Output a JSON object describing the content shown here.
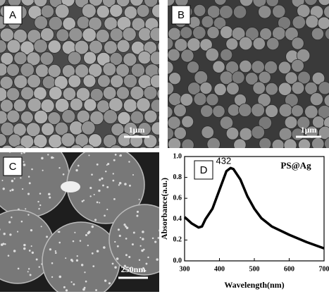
{
  "panels": {
    "A": {
      "label": "A",
      "scale_bar": "1μm"
    },
    "B": {
      "label": "B",
      "scale_bar": "1μm"
    },
    "C": {
      "label": "C",
      "scale_bar": "250nm"
    }
  },
  "chart_data": {
    "type": "line",
    "panel_label": "D",
    "sample_label": "PS@Ag",
    "peak_label": "432",
    "xlabel": "Wavelength(nm)",
    "ylabel": "Absorbance(a.u.)",
    "x": [
      300,
      320,
      340,
      350,
      360,
      380,
      400,
      420,
      432,
      440,
      460,
      480,
      500,
      520,
      550,
      600,
      650,
      700
    ],
    "values": [
      0.42,
      0.36,
      0.32,
      0.33,
      0.4,
      0.5,
      0.68,
      0.86,
      0.89,
      0.88,
      0.78,
      0.62,
      0.5,
      0.41,
      0.33,
      0.25,
      0.18,
      0.12
    ],
    "color": "#000000",
    "xlim": [
      300,
      700
    ],
    "xticks": [
      300,
      400,
      500,
      600,
      700
    ],
    "ylim": [
      0,
      1
    ],
    "yticks": [
      {
        "value": 0,
        "label": "0.0"
      },
      0.2,
      0.4,
      0.6,
      0.8,
      {
        "value": 1,
        "label": "1.0"
      }
    ]
  }
}
